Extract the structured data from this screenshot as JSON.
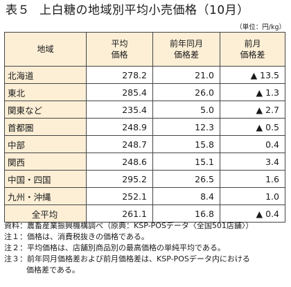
{
  "title": {
    "label": "表５",
    "text": "上白糖の地域別平均小売価格（10月）"
  },
  "unit": "（単位：円/kg）",
  "table": {
    "headers": [
      "地域",
      "平均\n価格",
      "前年同月\n価格差",
      "前月\n価格差"
    ],
    "rows": [
      {
        "region": "北海道",
        "price": "278.2",
        "yoy": "21.0",
        "mom": "▲ 13.5"
      },
      {
        "region": "東北",
        "price": "285.4",
        "yoy": "26.0",
        "mom": "▲ 1.3"
      },
      {
        "region": "関東など",
        "price": "235.4",
        "yoy": "5.0",
        "mom": "▲ 2.7"
      },
      {
        "region": "首都圏",
        "price": "248.9",
        "yoy": "12.3",
        "mom": "▲ 0.5"
      },
      {
        "region": "中部",
        "price": "248.7",
        "yoy": "15.8",
        "mom": "0.4"
      },
      {
        "region": "関西",
        "price": "248.6",
        "yoy": "15.1",
        "mom": "3.4"
      },
      {
        "region": "中国・四国",
        "price": "295.2",
        "yoy": "26.5",
        "mom": "1.6"
      },
      {
        "region": "九州・沖縄",
        "price": "252.1",
        "yoy": "8.4",
        "mom": "1.0"
      },
      {
        "region": "全平均",
        "price": "261.1",
        "yoy": "16.8",
        "mom": "▲ 0.4"
      }
    ]
  },
  "notes": {
    "source_label": "資料：",
    "source_text": "農畜産業振興機構調べ（原典：KSP-POSデータ〈全国501店舗〉）",
    "items": [
      {
        "label": "注１：",
        "text": "価格は、消費税抜きの価格である。"
      },
      {
        "label": "注２：",
        "text": "平均価格は、店舗別商品別の最高価格の単純平均である。"
      },
      {
        "label": "注３：",
        "text": "前年同月価格差および前月価格差は、KSP-POSデータ内における"
      }
    ],
    "note3_cont": "価格差である。"
  }
}
